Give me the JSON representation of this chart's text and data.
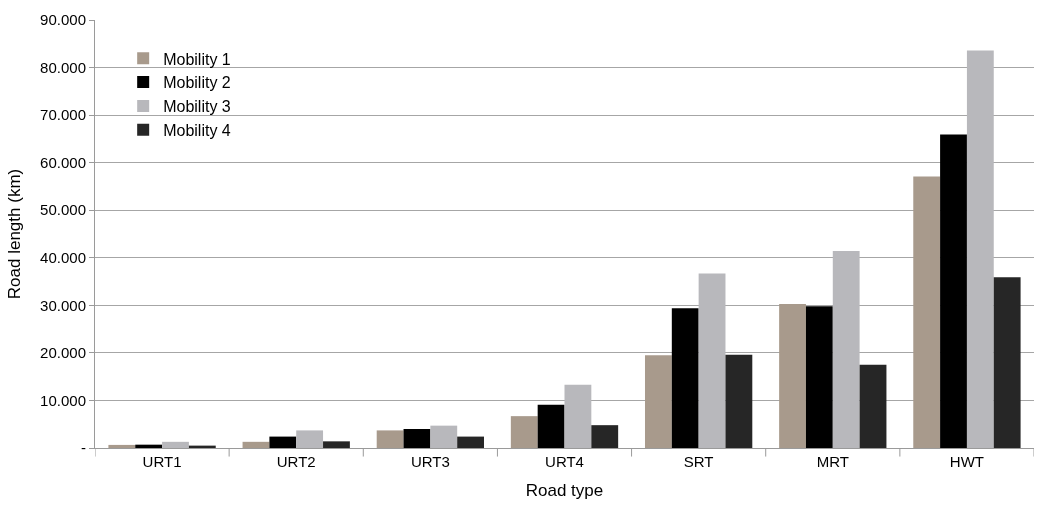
{
  "chart_data": {
    "type": "bar",
    "xlabel": "Road type",
    "ylabel": "Road length (km)",
    "categories": [
      "URT1",
      "URT2",
      "URT3",
      "URT4",
      "SRT",
      "MRT",
      "HWT"
    ],
    "series": [
      {
        "name": "Mobility 1",
        "color": "#a89a8c",
        "values": [
          0.65,
          1.3,
          3.7,
          6.7,
          19.5,
          30.3,
          57.1
        ]
      },
      {
        "name": "Mobility 2",
        "color": "#000000",
        "values": [
          0.7,
          2.4,
          4.0,
          9.1,
          29.4,
          29.8,
          65.9
        ]
      },
      {
        "name": "Mobility 3",
        "color": "#b8b8bc",
        "values": [
          1.3,
          3.7,
          4.7,
          13.3,
          36.7,
          41.4,
          83.6
        ]
      },
      {
        "name": "Mobility 4",
        "color": "#262626",
        "values": [
          0.5,
          1.4,
          2.4,
          4.8,
          19.6,
          17.5,
          35.9
        ]
      }
    ],
    "ylim": [
      0,
      90
    ],
    "yticks": [
      {
        "value": 0,
        "label": "-"
      },
      {
        "value": 10,
        "label": "10.000"
      },
      {
        "value": 20,
        "label": "20.000"
      },
      {
        "value": 30,
        "label": "30.000"
      },
      {
        "value": 40,
        "label": "40.000"
      },
      {
        "value": 50,
        "label": "50.000"
      },
      {
        "value": 60,
        "label": "60.000"
      },
      {
        "value": 70,
        "label": "70.000"
      },
      {
        "value": 80,
        "label": "80.000"
      },
      {
        "value": 90,
        "label": "90.000"
      }
    ],
    "grid": "y",
    "legend": "top left"
  }
}
